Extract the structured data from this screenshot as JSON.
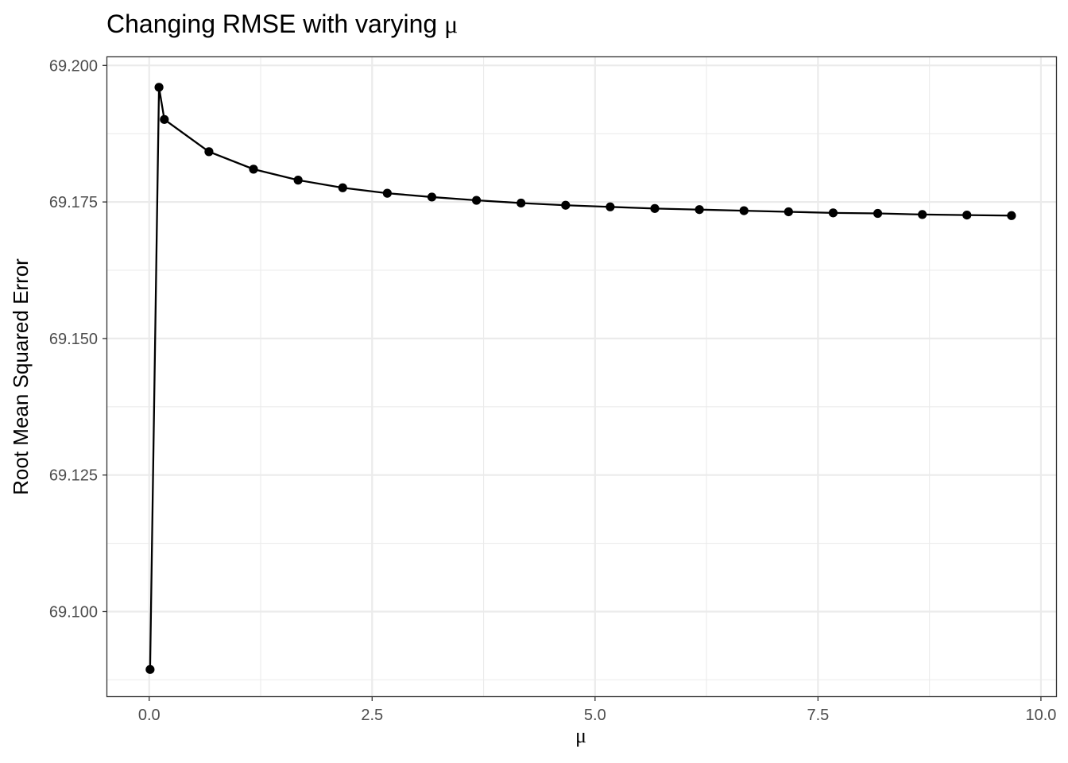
{
  "chart_data": {
    "type": "line",
    "title_prefix": "Changing RMSE with varying ",
    "title_symbol": "μ",
    "xlabel": "μ",
    "ylabel": "Root Mean Squared Error",
    "xlim": [
      -0.47,
      10.17
    ],
    "ylim": [
      69.0845,
      69.2015
    ],
    "x_ticks": [
      0.0,
      2.5,
      5.0,
      7.5,
      10.0
    ],
    "x_tick_labels": [
      "0.0",
      "2.5",
      "5.0",
      "7.5",
      "10.0"
    ],
    "y_ticks": [
      69.1,
      69.125,
      69.15,
      69.175,
      69.2
    ],
    "y_tick_labels": [
      "69.100",
      "69.125",
      "69.150",
      "69.175",
      "69.200"
    ],
    "grid": true,
    "legend": "none",
    "colors": {
      "line": "#000000",
      "points": "#000000",
      "grid": "#ebebeb",
      "border": "#333333",
      "tick_text": "#4d4d4d"
    },
    "series": [
      {
        "x": [
          0.01,
          0.11,
          0.17,
          0.67,
          1.17,
          1.67,
          2.17,
          2.67,
          3.17,
          3.67,
          4.17,
          4.67,
          5.17,
          5.67,
          6.17,
          6.67,
          7.17,
          7.67,
          8.17,
          8.67,
          9.17,
          9.67
        ],
        "y": [
          69.0894,
          69.196,
          69.1901,
          69.1842,
          69.181,
          69.179,
          69.1776,
          69.1766,
          69.1759,
          69.1753,
          69.1748,
          69.1744,
          69.1741,
          69.1738,
          69.1736,
          69.1734,
          69.1732,
          69.173,
          69.1729,
          69.1727,
          69.1726,
          69.1725
        ]
      }
    ]
  }
}
